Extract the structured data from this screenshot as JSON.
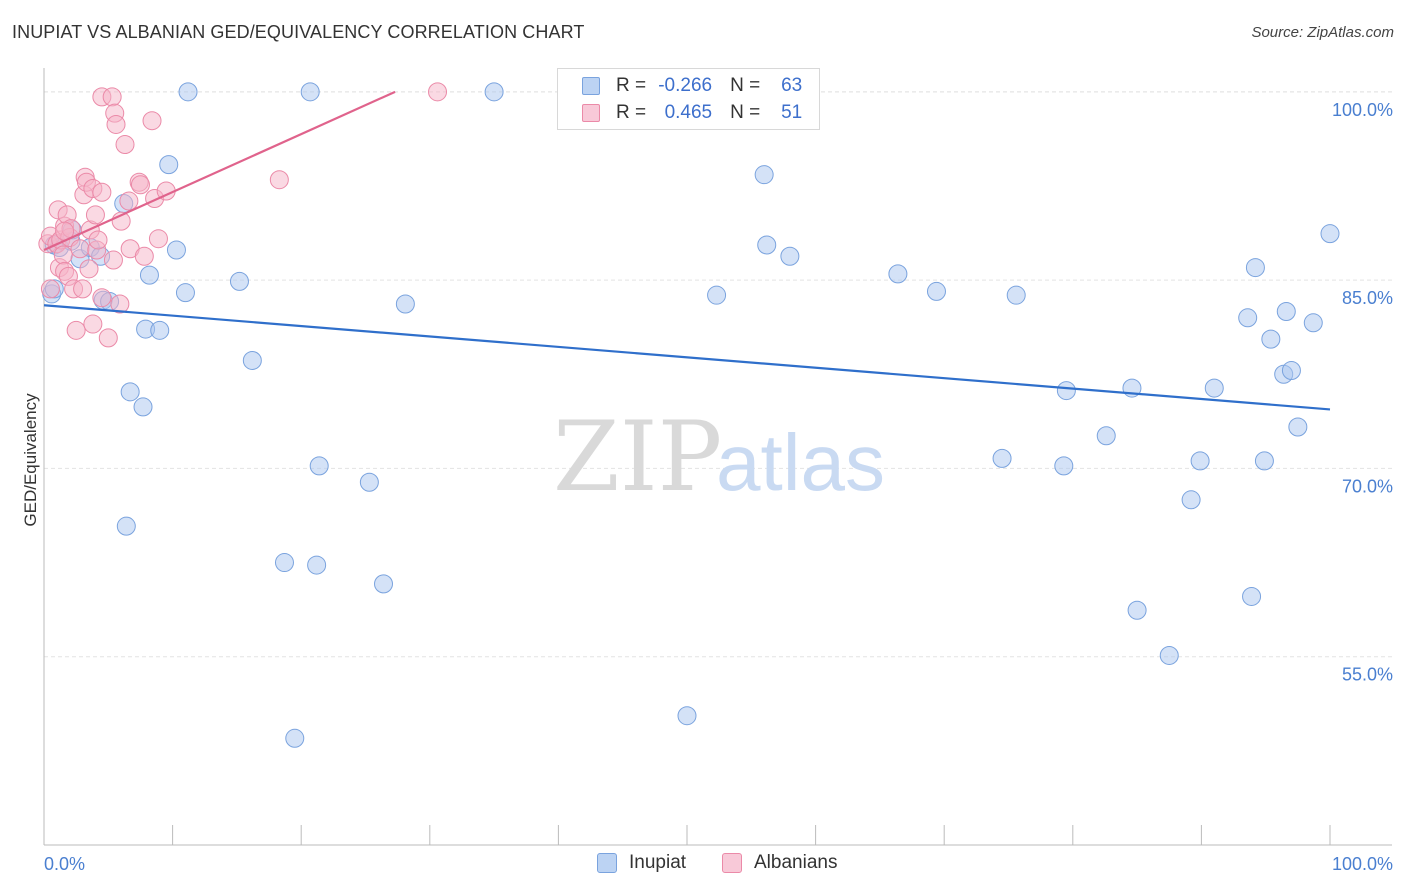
{
  "title": "INUPIAT VS ALBANIAN GED/EQUIVALENCY CORRELATION CHART",
  "source": "Source: ZipAtlas.com",
  "watermark": {
    "zip": "ZIP",
    "atlas": "atlas"
  },
  "colors": {
    "inupiat_fill": "#a9c6ef",
    "inupiat_stroke": "#7aa3de",
    "inupiat_line": "#2f6fcb",
    "albanian_fill": "#f5b3c8",
    "albanian_stroke": "#eb8aa8",
    "albanian_line": "#e0638c",
    "tick_label": "#4a7fd0",
    "grid": "#e3e3e3"
  },
  "legend": {
    "rows": [
      {
        "r_label": "R =",
        "r_value": "-0.266",
        "n_label": "N =",
        "n_value": "63"
      },
      {
        "r_label": "R =",
        "r_value": "0.465",
        "n_label": "N =",
        "n_value": "51"
      }
    ]
  },
  "bottom_legend": {
    "items": [
      "Inupiat",
      "Albanians"
    ]
  },
  "chart_data": {
    "type": "scatter",
    "ylabel": "GED/Equivalency",
    "xlim": [
      0,
      100
    ],
    "ylim": [
      40,
      101.5
    ],
    "x_tick_labels": [
      "0.0%",
      "100.0%"
    ],
    "y_ticks": [
      {
        "value": 100,
        "label": "100.0%"
      },
      {
        "value": 85,
        "label": "85.0%"
      },
      {
        "value": 70,
        "label": "70.0%"
      },
      {
        "value": 55,
        "label": "55.0%"
      }
    ],
    "grid": true,
    "series": [
      {
        "name": "Inupiat",
        "color": "#a9c6ef",
        "trend": {
          "x": [
            0,
            100
          ],
          "y": [
            83.0,
            74.7
          ]
        },
        "points": [
          [
            0.6,
            83.9
          ],
          [
            0.8,
            84.3
          ],
          [
            0.8,
            87.8
          ],
          [
            1.2,
            87.6
          ],
          [
            2.1,
            88.1
          ],
          [
            2.2,
            89.0
          ],
          [
            2.8,
            86.7
          ],
          [
            3.6,
            87.6
          ],
          [
            4.4,
            86.9
          ],
          [
            4.6,
            83.4
          ],
          [
            5.1,
            83.3
          ],
          [
            6.2,
            91.1
          ],
          [
            6.4,
            65.4
          ],
          [
            6.7,
            76.1
          ],
          [
            7.7,
            74.9
          ],
          [
            7.9,
            81.1
          ],
          [
            8.2,
            85.4
          ],
          [
            9.0,
            81.0
          ],
          [
            9.7,
            94.2
          ],
          [
            10.3,
            87.4
          ],
          [
            11.0,
            84.0
          ],
          [
            11.2,
            100.0
          ],
          [
            15.2,
            84.9
          ],
          [
            16.2,
            78.6
          ],
          [
            18.7,
            62.5
          ],
          [
            19.5,
            48.5
          ],
          [
            20.7,
            100.0
          ],
          [
            21.4,
            70.2
          ],
          [
            21.2,
            62.3
          ],
          [
            25.3,
            68.9
          ],
          [
            26.4,
            60.8
          ],
          [
            28.1,
            83.1
          ],
          [
            35.0,
            100.0
          ],
          [
            47.3,
            100.0
          ],
          [
            50.0,
            50.3
          ],
          [
            52.3,
            83.8
          ],
          [
            56.0,
            93.4
          ],
          [
            56.2,
            87.8
          ],
          [
            58.0,
            86.9
          ],
          [
            66.4,
            85.5
          ],
          [
            69.4,
            84.1
          ],
          [
            74.5,
            70.8
          ],
          [
            75.6,
            83.8
          ],
          [
            79.3,
            70.2
          ],
          [
            79.5,
            76.2
          ],
          [
            82.6,
            72.6
          ],
          [
            84.6,
            76.4
          ],
          [
            85.0,
            58.7
          ],
          [
            87.5,
            55.1
          ],
          [
            89.2,
            67.5
          ],
          [
            89.9,
            70.6
          ],
          [
            91.0,
            76.4
          ],
          [
            93.6,
            82.0
          ],
          [
            93.9,
            59.8
          ],
          [
            94.2,
            86.0
          ],
          [
            94.9,
            70.6
          ],
          [
            95.4,
            80.3
          ],
          [
            96.4,
            77.5
          ],
          [
            96.6,
            82.5
          ],
          [
            97.0,
            77.8
          ],
          [
            97.5,
            73.3
          ],
          [
            98.7,
            81.6
          ],
          [
            100.0,
            88.7
          ]
        ]
      },
      {
        "name": "Albanians",
        "color": "#f5b3c8",
        "trend": {
          "x": [
            0,
            27.3
          ],
          "y": [
            87.4,
            100.0
          ]
        },
        "points": [
          [
            0.3,
            87.9
          ],
          [
            0.5,
            88.5
          ],
          [
            0.5,
            84.3
          ],
          [
            1.0,
            87.9
          ],
          [
            1.1,
            90.6
          ],
          [
            1.2,
            86.0
          ],
          [
            1.3,
            88.2
          ],
          [
            1.5,
            87.0
          ],
          [
            1.6,
            89.3
          ],
          [
            1.6,
            85.7
          ],
          [
            1.8,
            90.2
          ],
          [
            1.9,
            85.3
          ],
          [
            2.0,
            88.4
          ],
          [
            2.1,
            89.1
          ],
          [
            2.3,
            84.3
          ],
          [
            2.5,
            81.0
          ],
          [
            2.8,
            87.5
          ],
          [
            3.0,
            84.3
          ],
          [
            3.1,
            91.8
          ],
          [
            3.2,
            93.2
          ],
          [
            3.3,
            92.8
          ],
          [
            3.5,
            85.9
          ],
          [
            3.6,
            89.0
          ],
          [
            3.8,
            92.3
          ],
          [
            3.8,
            81.5
          ],
          [
            4.0,
            90.2
          ],
          [
            4.1,
            87.4
          ],
          [
            4.2,
            88.2
          ],
          [
            4.5,
            99.6
          ],
          [
            4.5,
            92.0
          ],
          [
            4.5,
            83.6
          ],
          [
            5.0,
            80.4
          ],
          [
            5.3,
            99.6
          ],
          [
            5.4,
            86.6
          ],
          [
            5.5,
            98.3
          ],
          [
            5.6,
            97.4
          ],
          [
            5.9,
            83.1
          ],
          [
            6.0,
            89.7
          ],
          [
            6.3,
            95.8
          ],
          [
            6.6,
            91.3
          ],
          [
            6.7,
            87.5
          ],
          [
            7.4,
            92.8
          ],
          [
            7.5,
            92.6
          ],
          [
            7.8,
            86.9
          ],
          [
            8.4,
            97.7
          ],
          [
            8.6,
            91.5
          ],
          [
            8.9,
            88.3
          ],
          [
            9.5,
            92.1
          ],
          [
            18.3,
            93.0
          ],
          [
            30.6,
            100.0
          ],
          [
            1.6,
            88.9
          ]
        ]
      }
    ]
  }
}
